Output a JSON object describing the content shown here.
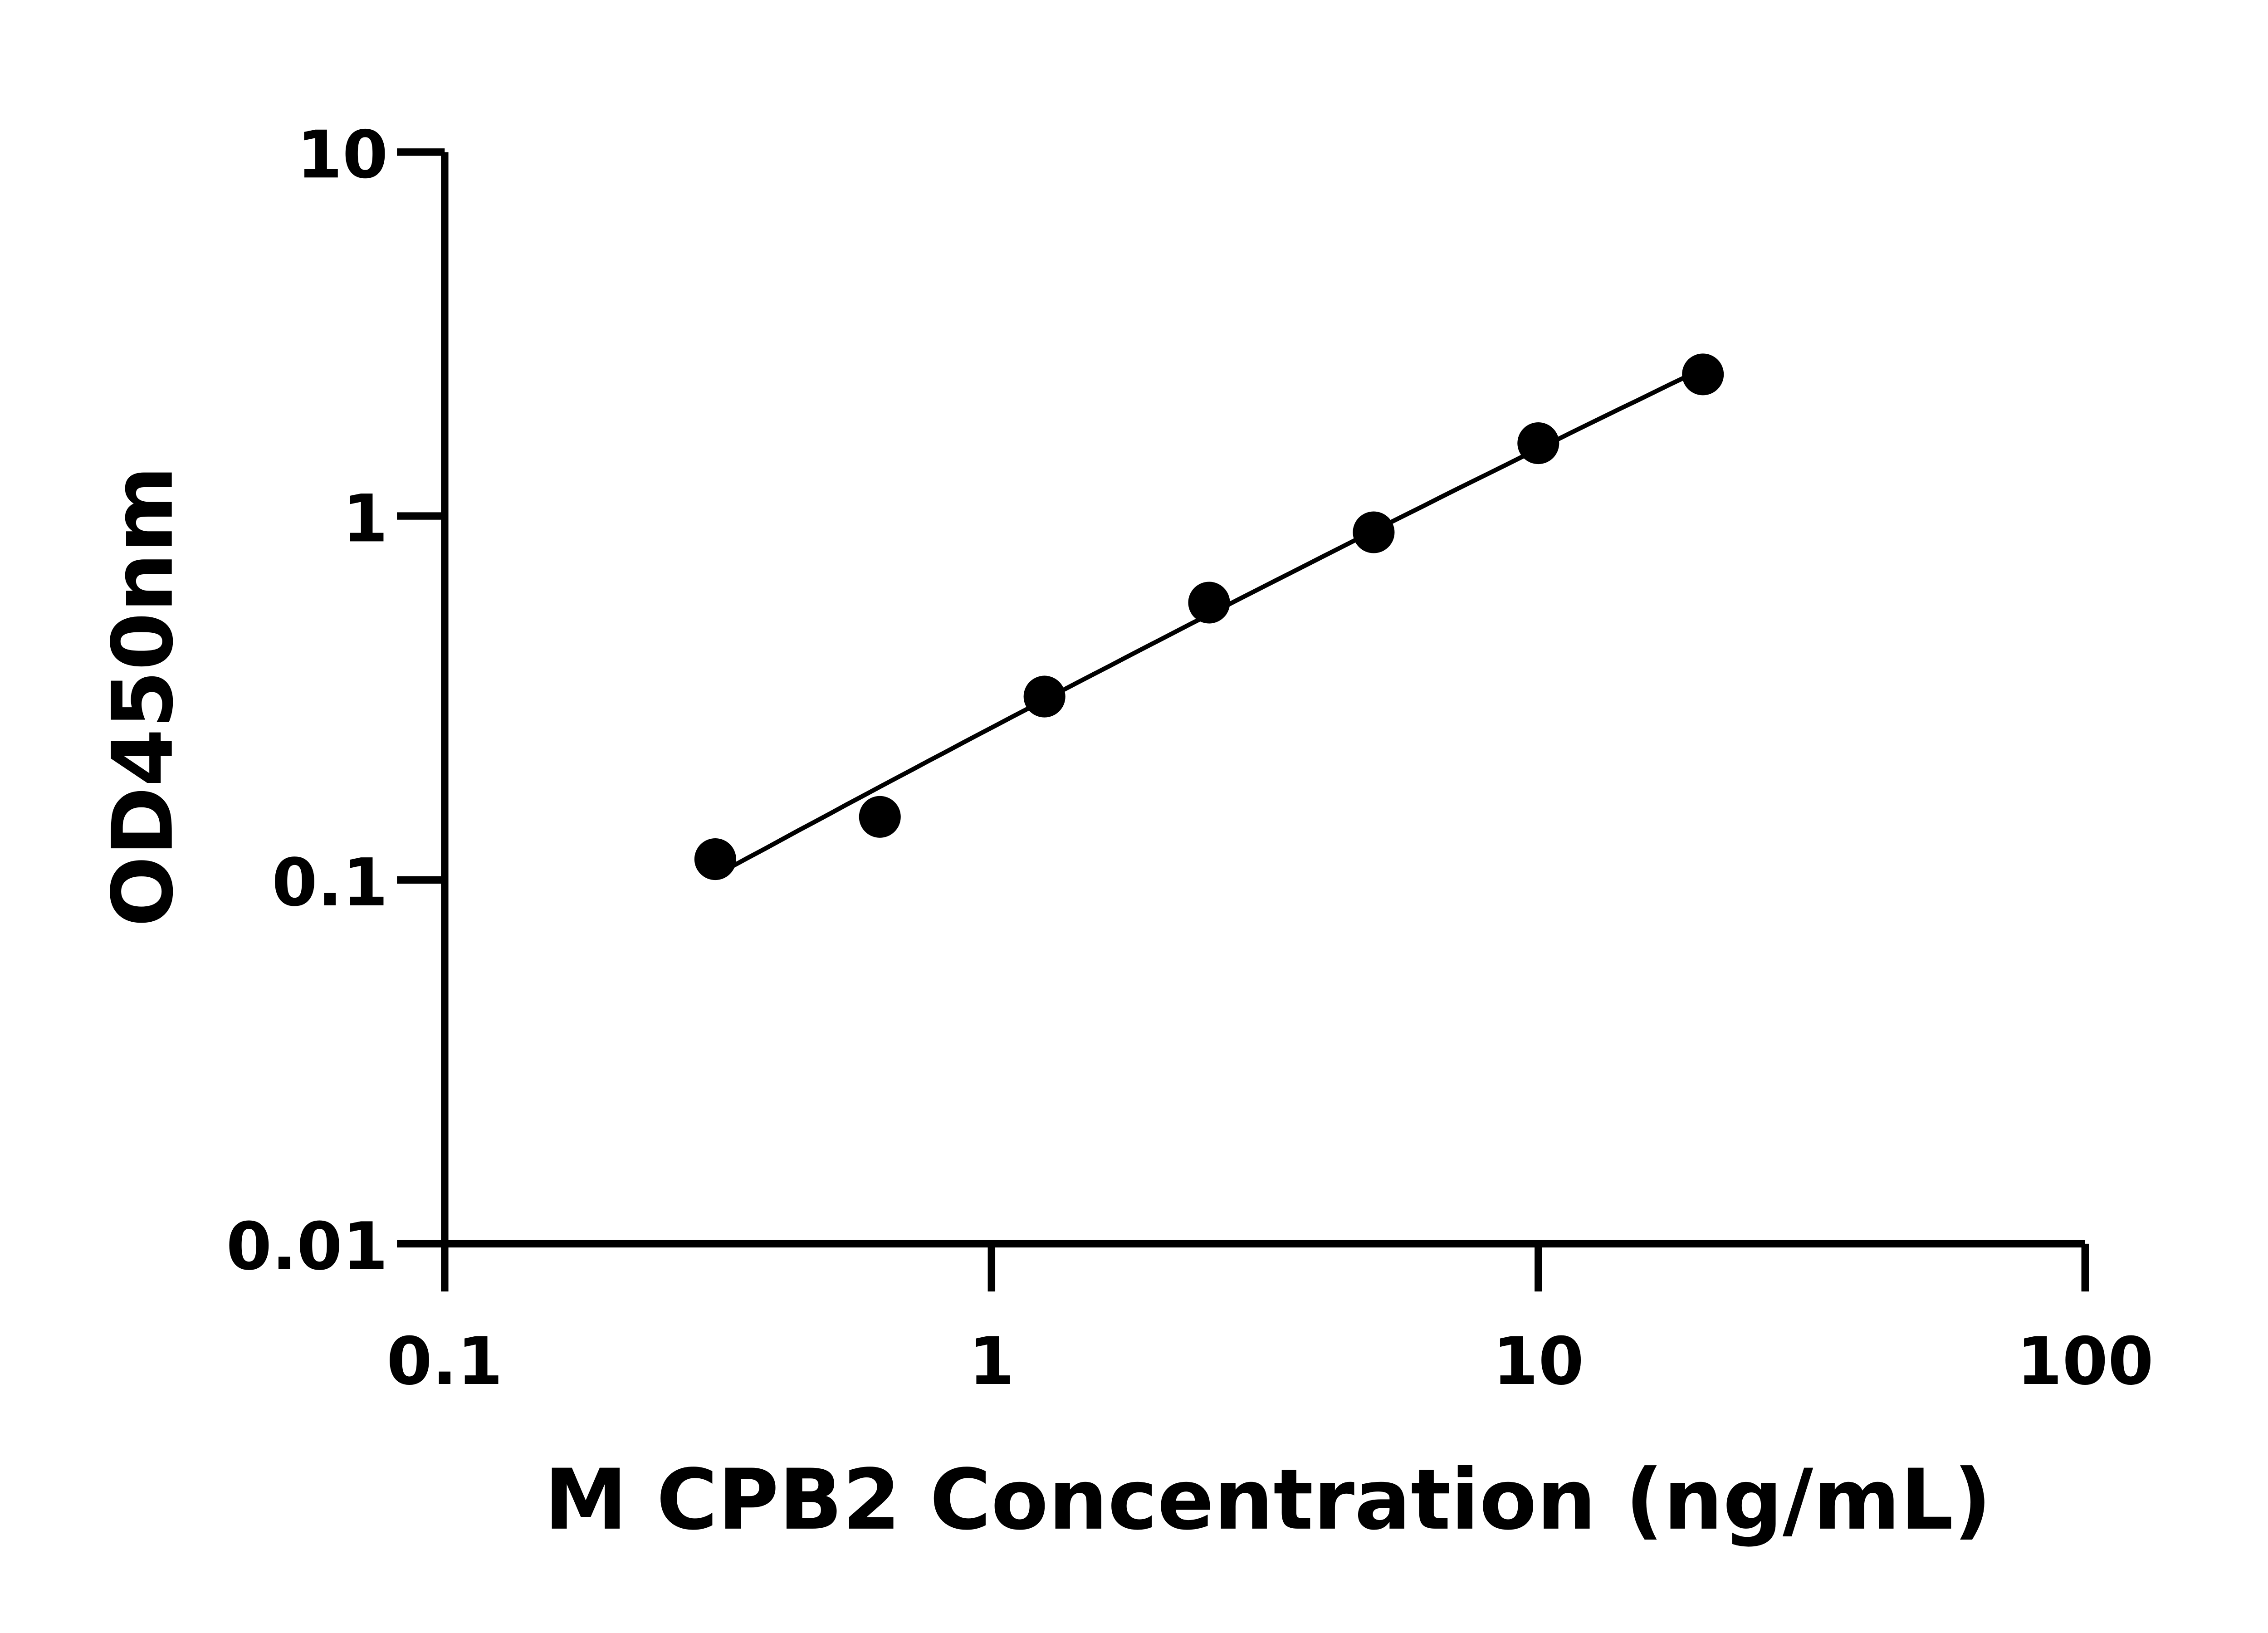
{
  "chart_data": {
    "type": "scatter",
    "title": "",
    "xlabel": "M CPB2 Concentration (ng/mL)",
    "ylabel": "OD450nm",
    "x_scale": "log",
    "y_scale": "log",
    "xlim": [
      0.1,
      100
    ],
    "ylim": [
      0.01,
      10
    ],
    "x_ticks": [
      "0.1",
      "1",
      "10",
      "100"
    ],
    "y_ticks": [
      "0.01",
      "0.1",
      "1",
      "10"
    ],
    "grid": false,
    "legend": "none",
    "fit_line": true,
    "color": "#000000",
    "series": [
      {
        "x": [
          0.3125,
          0.625,
          1.25,
          2.5,
          5,
          10,
          20
        ],
        "y": [
          0.114,
          0.149,
          0.319,
          0.578,
          0.902,
          1.585,
          2.45
        ]
      }
    ]
  }
}
